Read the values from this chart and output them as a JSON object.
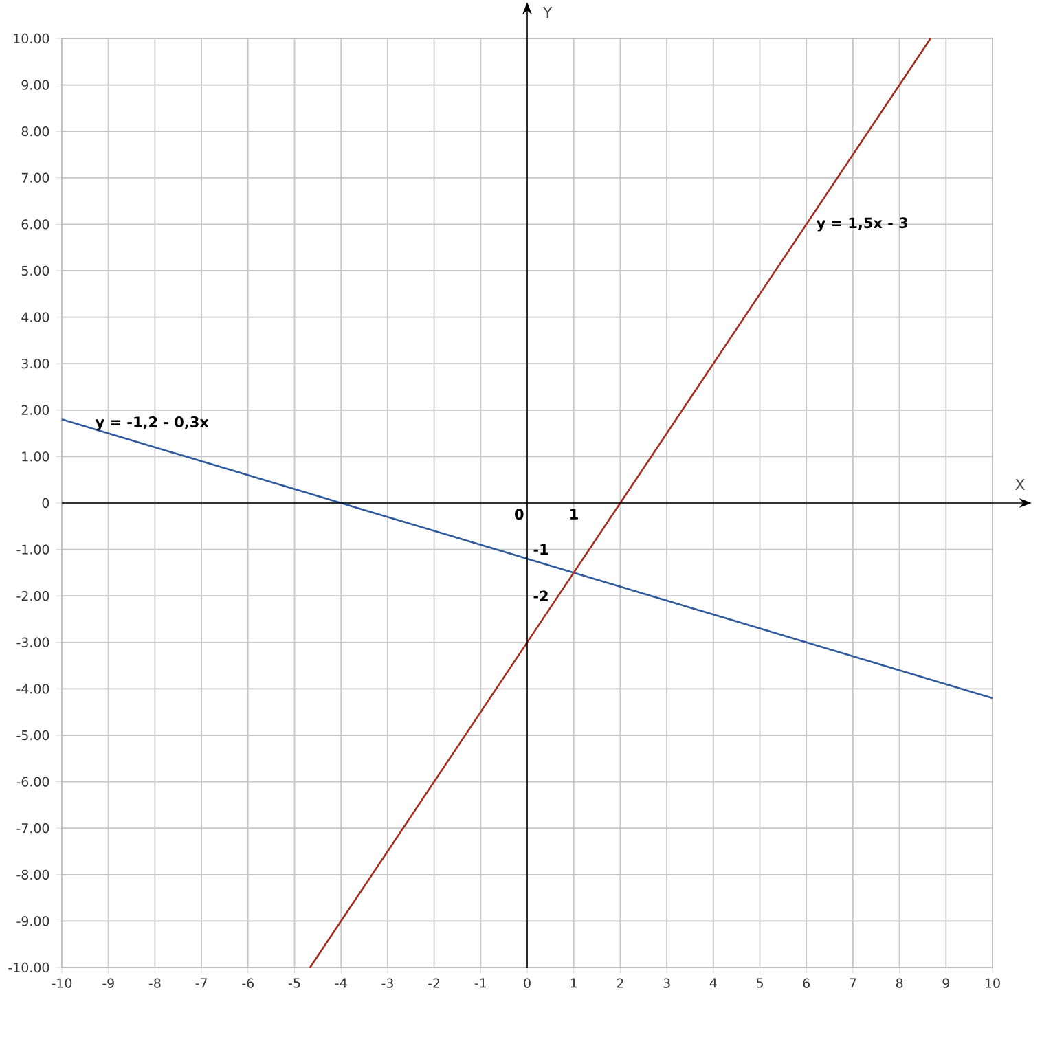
{
  "chart_data": {
    "type": "line",
    "xlabel": "X",
    "ylabel": "Y",
    "xlim": [
      -10,
      10
    ],
    "ylim": [
      -10,
      10
    ],
    "xticks": [
      -10,
      -9,
      -8,
      -7,
      -6,
      -5,
      -4,
      -3,
      -2,
      -1,
      0,
      1,
      2,
      3,
      4,
      5,
      6,
      7,
      8,
      9,
      10
    ],
    "yticks": [
      {
        "value": -10,
        "label": "-10.00"
      },
      {
        "value": -9,
        "label": "-9.00"
      },
      {
        "value": -8,
        "label": "-8.00"
      },
      {
        "value": -7,
        "label": "-7.00"
      },
      {
        "value": -6,
        "label": "-6.00"
      },
      {
        "value": -5,
        "label": "-5.00"
      },
      {
        "value": -4,
        "label": "-4.00"
      },
      {
        "value": -3,
        "label": "-3.00"
      },
      {
        "value": -2,
        "label": "-2.00"
      },
      {
        "value": -1,
        "label": "-1.00"
      },
      0,
      {
        "value": 1,
        "label": "1.00"
      },
      {
        "value": 2,
        "label": "2.00"
      },
      {
        "value": 3,
        "label": "3.00"
      },
      {
        "value": 4,
        "label": "4.00"
      },
      {
        "value": 5,
        "label": "5.00"
      },
      {
        "value": 6,
        "label": "6.00"
      },
      {
        "value": 7,
        "label": "7.00"
      },
      {
        "value": 8,
        "label": "8.00"
      },
      {
        "value": 9,
        "label": "9.00"
      },
      {
        "value": 10,
        "label": "10.00"
      }
    ],
    "series": [
      {
        "name": "y = -1,2 - 0,3x",
        "color": "#2e5a9c",
        "x": [
          -10,
          10
        ],
        "values": [
          1.8,
          -4.2
        ]
      },
      {
        "name": "y = 1,5x - 3",
        "color": "#a52a1e",
        "x": [
          -4.667,
          8.667
        ],
        "values": [
          -10,
          10
        ]
      }
    ],
    "annotations": [
      "0",
      "1",
      "-1",
      "-2"
    ],
    "grid": true,
    "legend": false,
    "marker": "none",
    "line_style": "solid"
  }
}
